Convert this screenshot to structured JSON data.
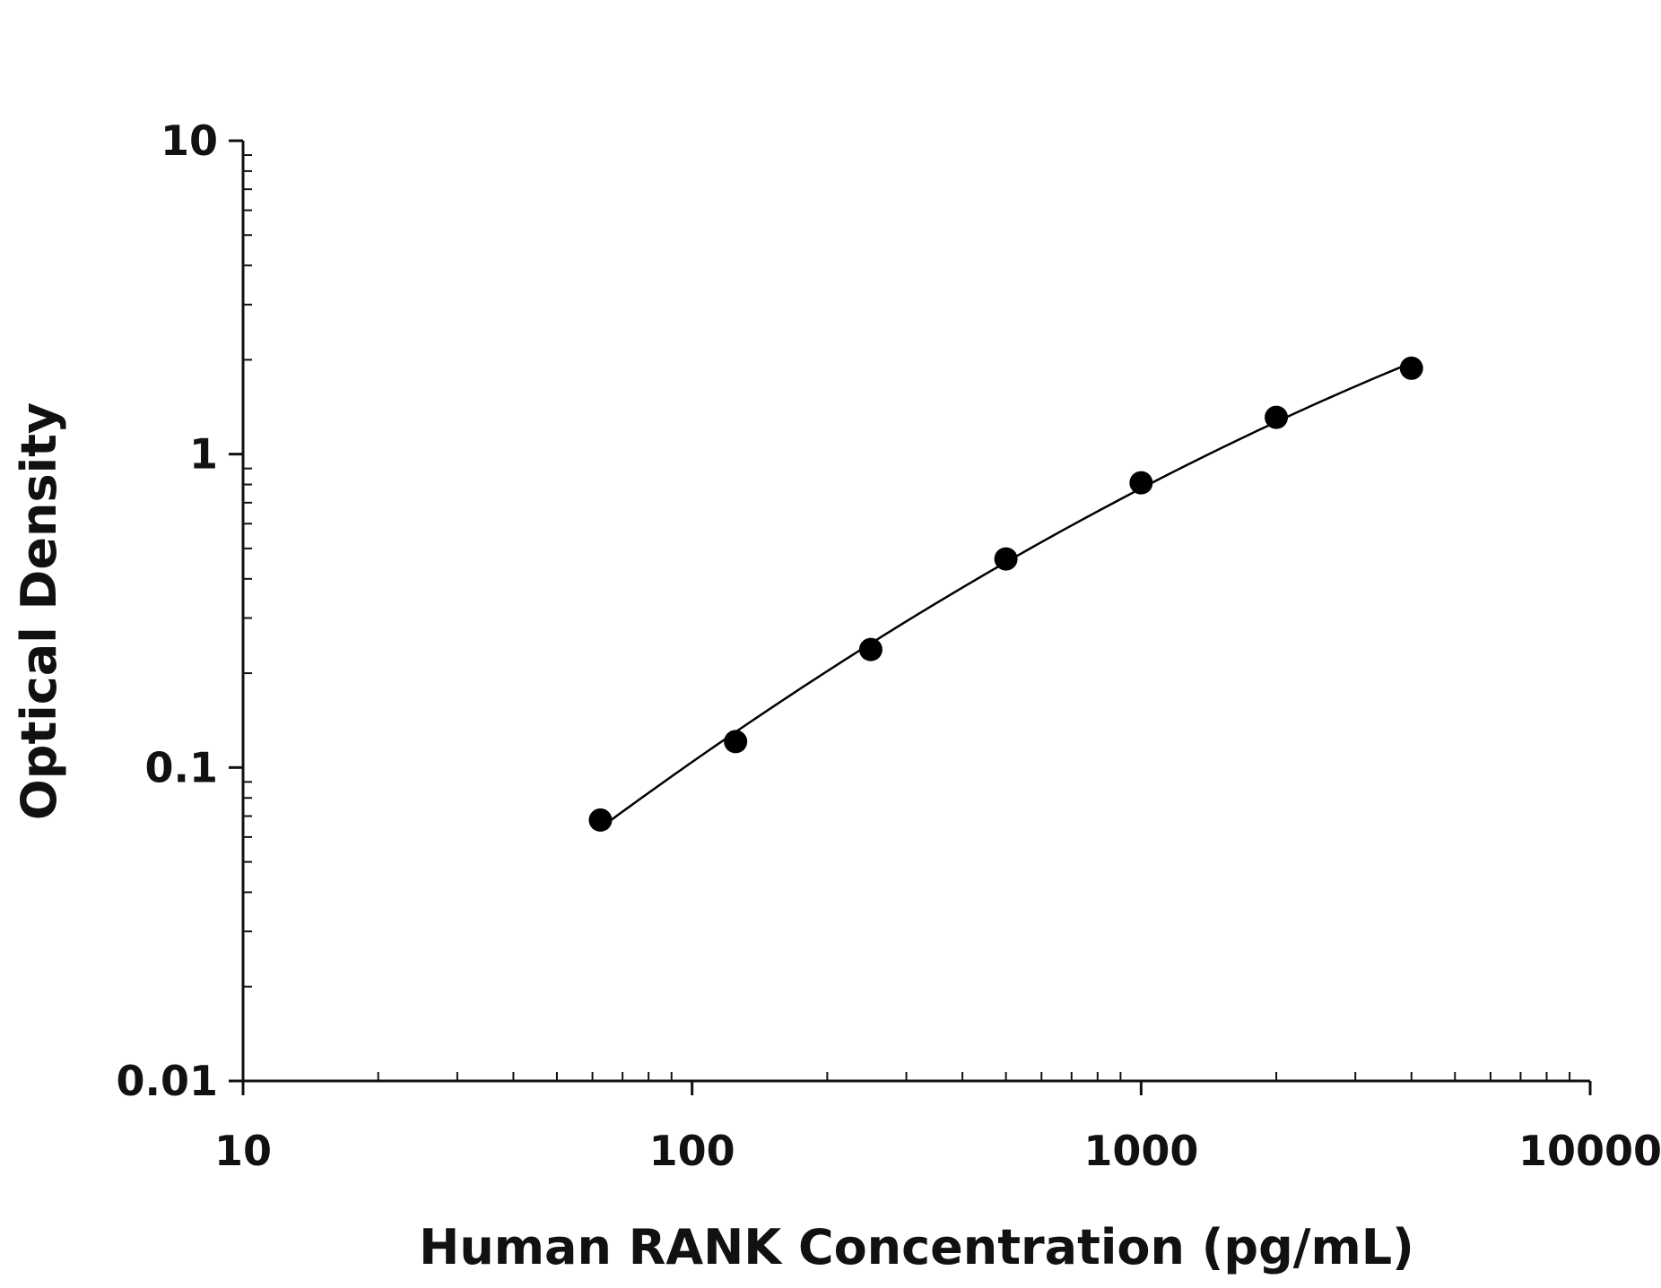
{
  "chart_data": {
    "type": "scatter",
    "title": "",
    "xlabel": "Human RANK Concentration (pg/mL)",
    "ylabel": "Optical Density",
    "x_scale": "log",
    "y_scale": "log",
    "xlim": [
      10,
      10000
    ],
    "ylim": [
      0.01,
      10
    ],
    "x_ticks": [
      10,
      100,
      1000,
      10000
    ],
    "x_tick_labels": [
      "10",
      "100",
      "1000",
      "10000"
    ],
    "y_ticks": [
      0.01,
      0.1,
      1,
      10
    ],
    "y_tick_labels": [
      "0.01",
      "0.1",
      "1",
      "10"
    ],
    "grid": false,
    "legend": "none",
    "series": [
      {
        "marker": "circle",
        "fit_line": "smooth curve",
        "color": "#000000",
        "x": [
          62.5,
          125,
          250,
          500,
          1000,
          2000,
          4000
        ],
        "y": [
          0.068,
          0.121,
          0.238,
          0.463,
          0.81,
          1.31,
          1.88
        ]
      }
    ]
  }
}
